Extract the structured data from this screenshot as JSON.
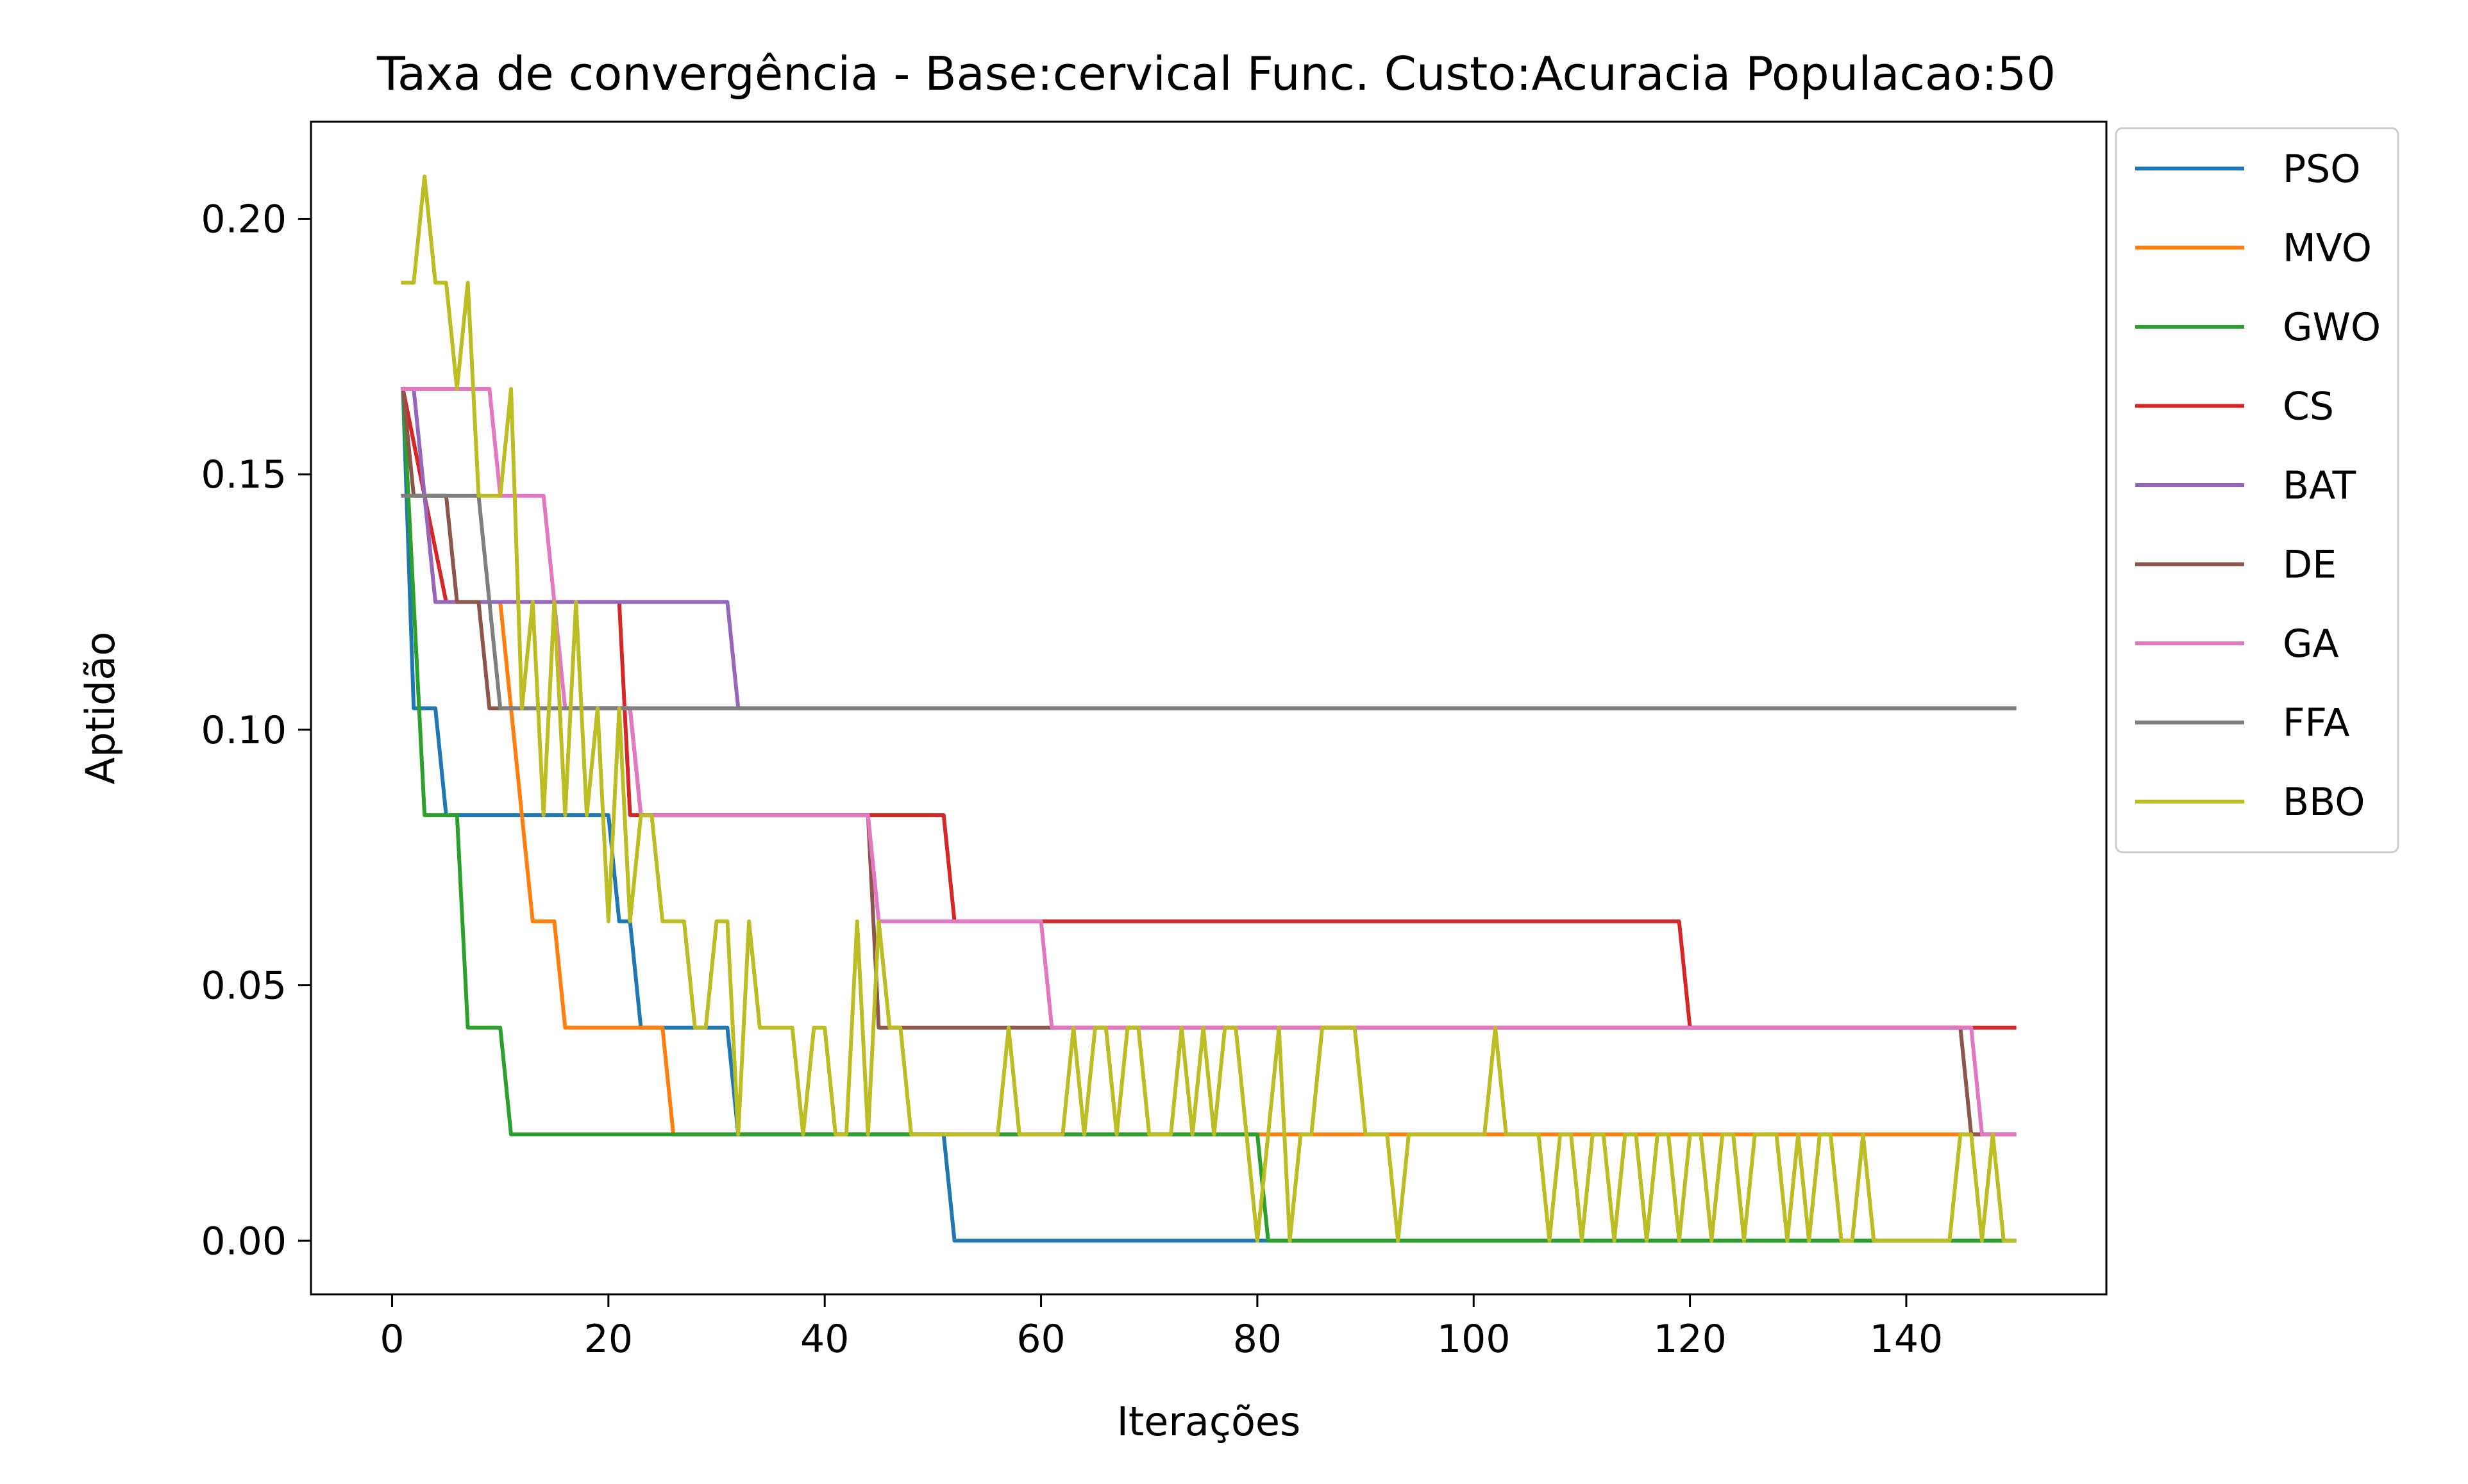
{
  "chart_data": {
    "type": "line",
    "title": "Taxa de convergência - Base:cervical Func. Custo:Acuracia Populacao:50",
    "xlabel": "Iterações",
    "ylabel": "Aptidão",
    "xlim": [
      -7.5,
      158.5
    ],
    "ylim": [
      -0.0105,
      0.219
    ],
    "xticks": [
      0,
      20,
      40,
      60,
      80,
      100,
      120,
      140
    ],
    "xtick_labels": [
      "0",
      "20",
      "40",
      "60",
      "80",
      "100",
      "120",
      "140"
    ],
    "yticks": [
      0.0,
      0.05,
      0.1,
      0.15,
      0.2
    ],
    "ytick_labels": [
      "0.00",
      "0.05",
      "0.10",
      "0.15",
      "0.20"
    ],
    "grid": false,
    "legend_position": "outside-upper-right",
    "series": [
      {
        "name": "PSO",
        "color": "#1f77b4",
        "points": [
          [
            1,
            0.1667
          ],
          [
            2,
            0.1042
          ],
          [
            3,
            0.1042
          ],
          [
            4,
            0.1042
          ],
          [
            5,
            0.0833
          ],
          [
            20,
            0.0833
          ],
          [
            21,
            0.0625
          ],
          [
            22,
            0.0625
          ],
          [
            23,
            0.0417
          ],
          [
            31,
            0.0417
          ],
          [
            32,
            0.0208
          ],
          [
            51,
            0.0208
          ],
          [
            52,
            0.0
          ],
          [
            150,
            0.0
          ]
        ]
      },
      {
        "name": "MVO",
        "color": "#ff7f0e",
        "points": [
          [
            1,
            0.1667
          ],
          [
            3,
            0.1458
          ],
          [
            4,
            0.125
          ],
          [
            10,
            0.125
          ],
          [
            11,
            0.1042
          ],
          [
            12,
            0.0833
          ],
          [
            13,
            0.0625
          ],
          [
            15,
            0.0625
          ],
          [
            16,
            0.0417
          ],
          [
            25,
            0.0417
          ],
          [
            26,
            0.0208
          ],
          [
            150,
            0.0208
          ]
        ]
      },
      {
        "name": "GWO",
        "color": "#2ca02c",
        "points": [
          [
            1,
            0.1667
          ],
          [
            2,
            0.125
          ],
          [
            3,
            0.0833
          ],
          [
            6,
            0.0833
          ],
          [
            7,
            0.0417
          ],
          [
            10,
            0.0417
          ],
          [
            11,
            0.0208
          ],
          [
            80,
            0.0208
          ],
          [
            81,
            0.0
          ],
          [
            150,
            0.0
          ]
        ]
      },
      {
        "name": "CS",
        "color": "#d62728",
        "points": [
          [
            1,
            0.1667
          ],
          [
            3,
            0.1458
          ],
          [
            5,
            0.125
          ],
          [
            21,
            0.125
          ],
          [
            22,
            0.0833
          ],
          [
            51,
            0.0833
          ],
          [
            52,
            0.0625
          ],
          [
            119,
            0.0625
          ],
          [
            120,
            0.0417
          ],
          [
            150,
            0.0417
          ]
        ]
      },
      {
        "name": "BAT",
        "color": "#9467bd",
        "points": [
          [
            1,
            0.1667
          ],
          [
            2,
            0.1667
          ],
          [
            3,
            0.1458
          ],
          [
            4,
            0.125
          ],
          [
            31,
            0.125
          ],
          [
            32,
            0.1042
          ],
          [
            150,
            0.1042
          ]
        ]
      },
      {
        "name": "DE",
        "color": "#8c564b",
        "points": [
          [
            1,
            0.1667
          ],
          [
            2,
            0.1458
          ],
          [
            5,
            0.1458
          ],
          [
            6,
            0.125
          ],
          [
            8,
            0.125
          ],
          [
            9,
            0.1042
          ],
          [
            22,
            0.1042
          ],
          [
            23,
            0.0833
          ],
          [
            44,
            0.0833
          ],
          [
            45,
            0.0417
          ],
          [
            145,
            0.0417
          ],
          [
            146,
            0.0208
          ],
          [
            150,
            0.0208
          ]
        ]
      },
      {
        "name": "GA",
        "color": "#e377c2",
        "points": [
          [
            1,
            0.1667
          ],
          [
            9,
            0.1667
          ],
          [
            10,
            0.1458
          ],
          [
            14,
            0.1458
          ],
          [
            15,
            0.125
          ],
          [
            16,
            0.1042
          ],
          [
            22,
            0.1042
          ],
          [
            23,
            0.0833
          ],
          [
            44,
            0.0833
          ],
          [
            45,
            0.0625
          ],
          [
            60,
            0.0625
          ],
          [
            61,
            0.0417
          ],
          [
            146,
            0.0417
          ],
          [
            147,
            0.0208
          ],
          [
            150,
            0.0208
          ]
        ]
      },
      {
        "name": "FFA",
        "color": "#7f7f7f",
        "points": [
          [
            1,
            0.1458
          ],
          [
            8,
            0.1458
          ],
          [
            9,
            0.125
          ],
          [
            10,
            0.1042
          ],
          [
            150,
            0.1042
          ]
        ]
      },
      {
        "name": "BBO",
        "color": "#bcbd22",
        "points": [
          [
            1,
            0.1875
          ],
          [
            2,
            0.1875
          ],
          [
            3,
            0.2083
          ],
          [
            4,
            0.1875
          ],
          [
            5,
            0.1875
          ],
          [
            6,
            0.1667
          ],
          [
            7,
            0.1875
          ],
          [
            8,
            0.1458
          ],
          [
            9,
            0.1458
          ],
          [
            10,
            0.1458
          ],
          [
            11,
            0.1667
          ],
          [
            12,
            0.1042
          ],
          [
            13,
            0.125
          ],
          [
            14,
            0.0833
          ],
          [
            15,
            0.125
          ],
          [
            16,
            0.0833
          ],
          [
            17,
            0.125
          ],
          [
            18,
            0.0833
          ],
          [
            19,
            0.1042
          ],
          [
            20,
            0.0625
          ],
          [
            21,
            0.1042
          ],
          [
            22,
            0.0625
          ],
          [
            23,
            0.0833
          ],
          [
            24,
            0.0833
          ],
          [
            25,
            0.0625
          ],
          [
            27,
            0.0625
          ],
          [
            28,
            0.0417
          ],
          [
            29,
            0.0417
          ],
          [
            30,
            0.0625
          ],
          [
            31,
            0.0625
          ],
          [
            32,
            0.0208
          ],
          [
            33,
            0.0625
          ],
          [
            34,
            0.0417
          ],
          [
            37,
            0.0417
          ],
          [
            38,
            0.0208
          ],
          [
            39,
            0.0417
          ],
          [
            40,
            0.0417
          ],
          [
            41,
            0.0208
          ],
          [
            42,
            0.0208
          ],
          [
            43,
            0.0625
          ],
          [
            44,
            0.0208
          ],
          [
            45,
            0.0625
          ],
          [
            46,
            0.0417
          ],
          [
            47,
            0.0417
          ],
          [
            48,
            0.0208
          ],
          [
            56,
            0.0208
          ],
          [
            57,
            0.0417
          ],
          [
            58,
            0.0208
          ],
          [
            62,
            0.0208
          ],
          [
            63,
            0.0417
          ],
          [
            64,
            0.0208
          ],
          [
            65,
            0.0417
          ],
          [
            66,
            0.0417
          ],
          [
            67,
            0.0208
          ],
          [
            68,
            0.0417
          ],
          [
            69,
            0.0417
          ],
          [
            70,
            0.0208
          ],
          [
            72,
            0.0208
          ],
          [
            73,
            0.0417
          ],
          [
            74,
            0.0208
          ],
          [
            75,
            0.0417
          ],
          [
            76,
            0.0208
          ],
          [
            77,
            0.0417
          ],
          [
            78,
            0.0417
          ],
          [
            79,
            0.0208
          ],
          [
            80,
            0.0
          ],
          [
            81,
            0.0208
          ],
          [
            82,
            0.0417
          ],
          [
            83,
            0.0
          ],
          [
            84,
            0.0208
          ],
          [
            85,
            0.0208
          ],
          [
            86,
            0.0417
          ],
          [
            87,
            0.0417
          ],
          [
            89,
            0.0417
          ],
          [
            90,
            0.0208
          ],
          [
            92,
            0.0208
          ],
          [
            93,
            0.0
          ],
          [
            94,
            0.0208
          ],
          [
            101,
            0.0208
          ],
          [
            102,
            0.0417
          ],
          [
            103,
            0.0208
          ],
          [
            106,
            0.0208
          ],
          [
            107,
            0.0
          ],
          [
            108,
            0.0208
          ],
          [
            109,
            0.0208
          ],
          [
            110,
            0.0
          ],
          [
            111,
            0.0208
          ],
          [
            112,
            0.0208
          ],
          [
            113,
            0.0
          ],
          [
            114,
            0.0208
          ],
          [
            115,
            0.0208
          ],
          [
            116,
            0.0
          ],
          [
            117,
            0.0208
          ],
          [
            118,
            0.0208
          ],
          [
            119,
            0.0
          ],
          [
            120,
            0.0208
          ],
          [
            121,
            0.0208
          ],
          [
            122,
            0.0
          ],
          [
            123,
            0.0208
          ],
          [
            124,
            0.0208
          ],
          [
            125,
            0.0
          ],
          [
            126,
            0.0208
          ],
          [
            128,
            0.0208
          ],
          [
            129,
            0.0
          ],
          [
            130,
            0.0208
          ],
          [
            131,
            0.0
          ],
          [
            132,
            0.0208
          ],
          [
            133,
            0.0208
          ],
          [
            134,
            0.0
          ],
          [
            135,
            0.0
          ],
          [
            136,
            0.0208
          ],
          [
            137,
            0.0
          ],
          [
            144,
            0.0
          ],
          [
            145,
            0.0208
          ],
          [
            146,
            0.0208
          ],
          [
            147,
            0.0
          ],
          [
            148,
            0.0208
          ],
          [
            149,
            0.0
          ],
          [
            150,
            0.0
          ]
        ]
      }
    ]
  }
}
